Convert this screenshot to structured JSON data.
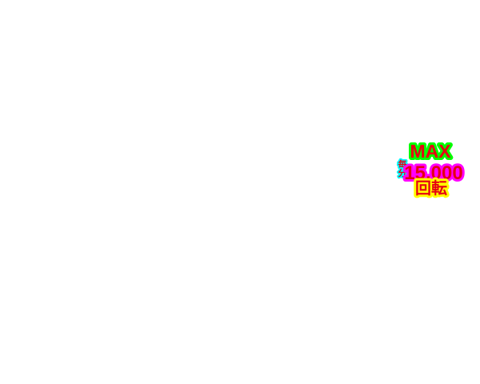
{
  "chart_data": {
    "max_badge": {
      "max": "MAX",
      "per": "毎分",
      "value": "15,000",
      "unit": "回転"
    }
  }
}
